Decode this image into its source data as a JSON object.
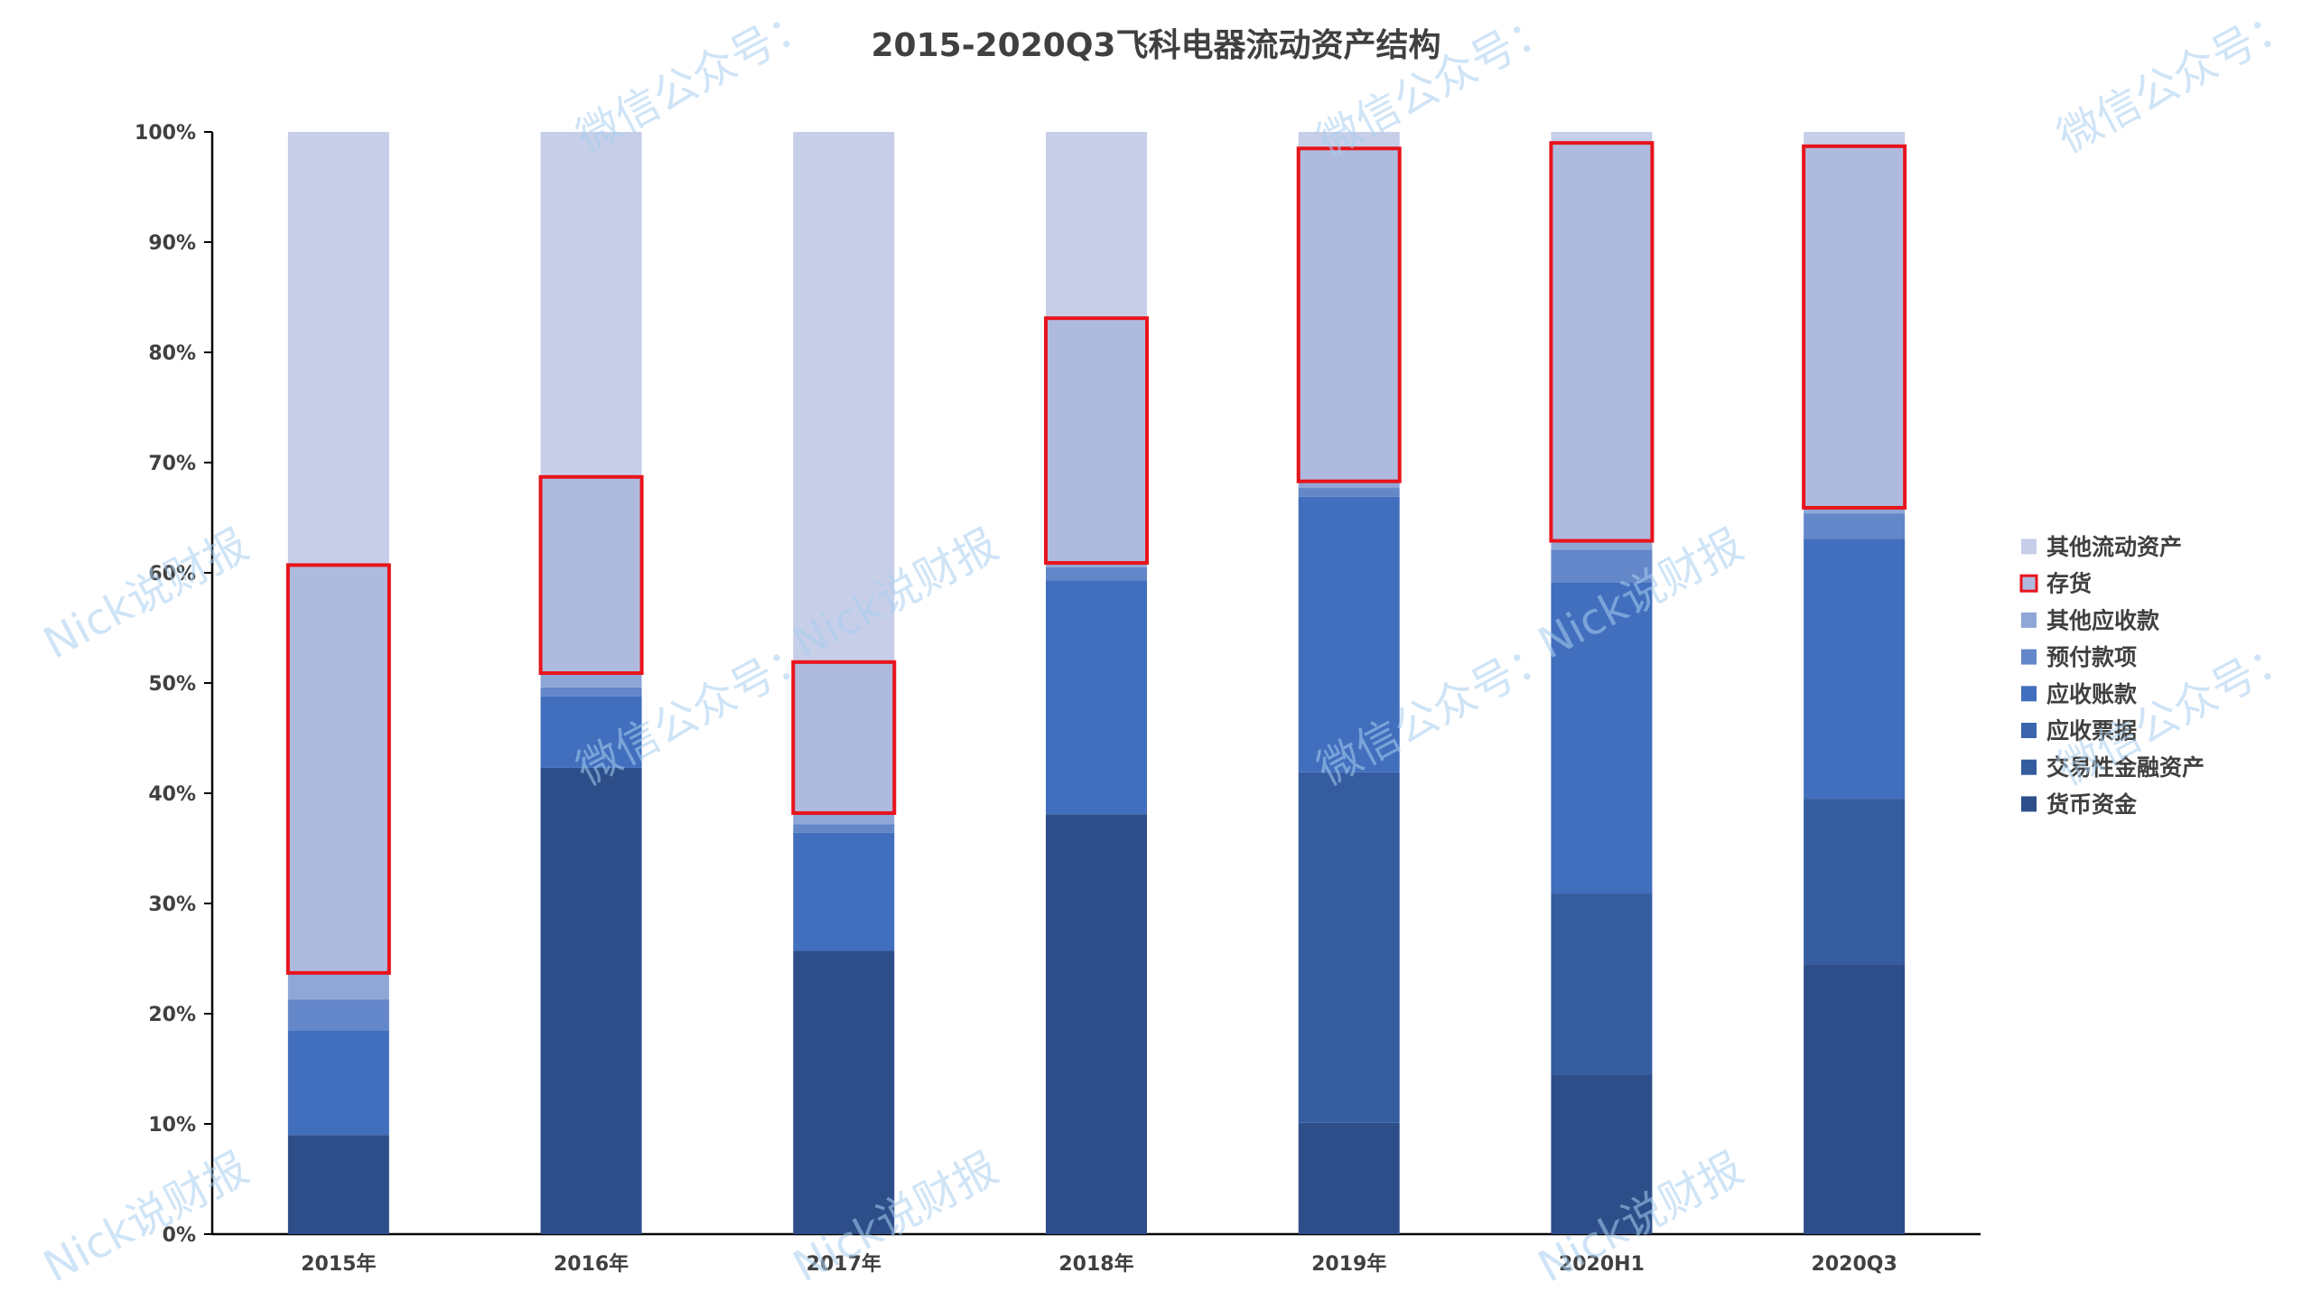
{
  "chart_data": {
    "type": "bar",
    "stacked": "percent",
    "title": "2015-2020Q3飞科电器流动资产结构",
    "xlabel": "",
    "ylabel": "",
    "ylim": [
      0,
      100
    ],
    "yticks": [
      "0%",
      "10%",
      "20%",
      "30%",
      "40%",
      "50%",
      "60%",
      "70%",
      "80%",
      "90%",
      "100%"
    ],
    "grid": false,
    "legend_position": "right",
    "categories": [
      "2015年",
      "2016年",
      "2017年",
      "2018年",
      "2019年",
      "2020H1",
      "2020Q3"
    ],
    "series": [
      {
        "name": "货币资金",
        "color": "#2e4e8a",
        "values": [
          9,
          42.3,
          25.7,
          38.1,
          10.1,
          14.5,
          24.5
        ]
      },
      {
        "name": "交易性金融资产",
        "color": "#355c9f",
        "values": [
          0,
          0,
          0,
          0,
          31.8,
          16.4,
          15
        ]
      },
      {
        "name": "应收票据",
        "color": "#3b64ad",
        "values": [
          0,
          0,
          0,
          0,
          0,
          0,
          0
        ]
      },
      {
        "name": "应收账款",
        "color": "#416fbd",
        "values": [
          9.5,
          6.5,
          10.7,
          21.2,
          25,
          28.2,
          23.6
        ]
      },
      {
        "name": "预付款项",
        "color": "#6487c9",
        "values": [
          2.8,
          0.8,
          0.8,
          1.2,
          0.8,
          3,
          2.3
        ]
      },
      {
        "name": "其他应收款",
        "color": "#8ea7d6",
        "values": [
          2.4,
          1.3,
          1,
          0.4,
          0.6,
          0.8,
          0.5
        ]
      },
      {
        "name": "存货",
        "color": "#afbbde",
        "highlight": true,
        "values": [
          37,
          17.8,
          13.7,
          22.2,
          30.2,
          36.1,
          32.8
        ]
      },
      {
        "name": "其他流动资产",
        "color": "#c7cee8",
        "values": [
          39.3,
          31.3,
          48.1,
          16.9,
          1.5,
          1,
          1.3
        ]
      }
    ],
    "legend_order": [
      "其他流动资产",
      "存货",
      "其他应收款",
      "预付款项",
      "应收账款",
      "应收票据",
      "交易性金融资产",
      "货币资金"
    ],
    "highlight_color": "#e8141c"
  },
  "watermark": {
    "text_a": "微信公众号：",
    "text_b": "Nick说财报"
  }
}
